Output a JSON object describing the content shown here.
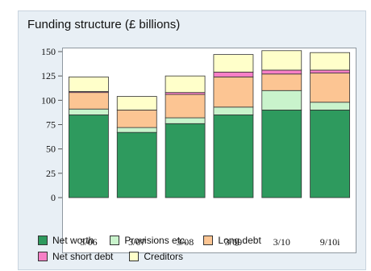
{
  "chart_data": {
    "type": "bar",
    "stacked": true,
    "title": "Funding structure (£ billions)",
    "xlabel": "",
    "ylabel": "",
    "categories": [
      "3/06",
      "3/07",
      "3/08",
      "3/09",
      "3/10",
      "9/10i"
    ],
    "ylim": [
      0,
      150
    ],
    "yticks": [
      0,
      25,
      50,
      75,
      100,
      125,
      150
    ],
    "grid": false,
    "legend_position": "bottom",
    "series": [
      {
        "name": "Net worth",
        "color": "#2e9a5e",
        "values": [
          85,
          67,
          76,
          85,
          90,
          90
        ]
      },
      {
        "name": "Provisions etc.",
        "color": "#c9f3cc",
        "values": [
          6,
          5,
          6,
          8,
          20,
          8
        ]
      },
      {
        "name": "Long debt",
        "color": "#fcc593",
        "values": [
          17,
          18,
          24,
          31,
          17,
          30
        ]
      },
      {
        "name": "Net short debt",
        "color": "#f77fc6",
        "values": [
          1,
          0,
          2,
          5,
          4,
          3
        ]
      },
      {
        "name": "Creditors",
        "color": "#ffffca",
        "values": [
          15,
          14,
          17,
          18,
          20,
          18
        ]
      }
    ]
  }
}
